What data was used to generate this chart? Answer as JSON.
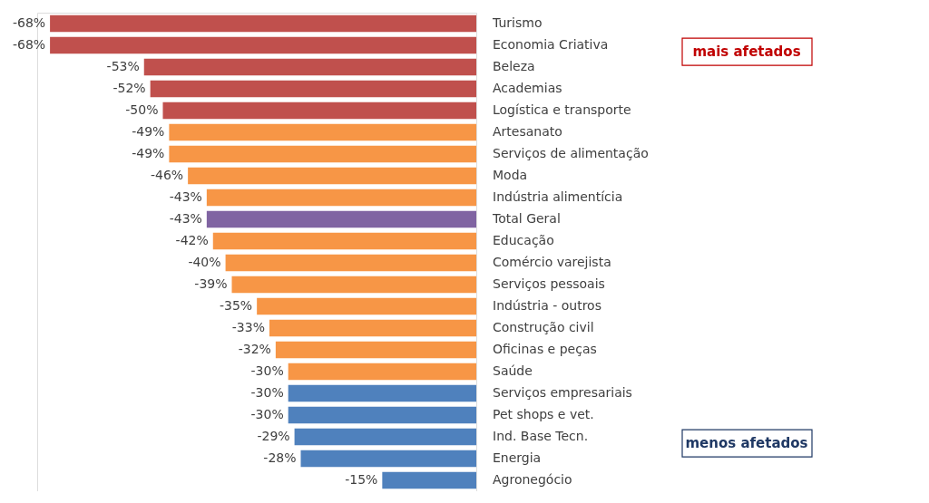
{
  "chart_data": {
    "type": "bar",
    "orientation": "horizontal",
    "categories": [
      "Turismo",
      "Economia Criativa",
      "Beleza",
      "Academias",
      "Logística e transporte",
      "Artesanato",
      "Serviços de alimentação",
      "Moda",
      "Indústria alimentícia",
      "Total Geral",
      "Educação",
      "Comércio varejista",
      "Serviços pessoais",
      "Indústria - outros",
      "Construção civil",
      "Oficinas e peças",
      "Saúde",
      "Serviços empresariais",
      "Pet shops e vet.",
      "Ind. Base Tecn.",
      "Energia",
      "Agronegócio"
    ],
    "values": [
      -68,
      -68,
      -53,
      -52,
      -50,
      -49,
      -49,
      -46,
      -43,
      -43,
      -42,
      -40,
      -39,
      -35,
      -33,
      -32,
      -30,
      -30,
      -30,
      -29,
      -28,
      -15
    ],
    "value_labels": [
      "-68%",
      "-68%",
      "-53%",
      "-52%",
      "-50%",
      "-49%",
      "-49%",
      "-46%",
      "-43%",
      "-43%",
      "-42%",
      "-40%",
      "-39%",
      "-35%",
      "-33%",
      "-32%",
      "-30%",
      "-30%",
      "-30%",
      "-29%",
      "-28%",
      "-15%"
    ],
    "colors": [
      "#c0504d",
      "#c0504d",
      "#c0504d",
      "#c0504d",
      "#c0504d",
      "#f79646",
      "#f79646",
      "#f79646",
      "#f79646",
      "#8064a2",
      "#f79646",
      "#f79646",
      "#f79646",
      "#f79646",
      "#f79646",
      "#f79646",
      "#f79646",
      "#4f81bd",
      "#4f81bd",
      "#4f81bd",
      "#4f81bd",
      "#4f81bd"
    ],
    "annotations": [
      "mais afetados",
      "menos afetados"
    ]
  }
}
